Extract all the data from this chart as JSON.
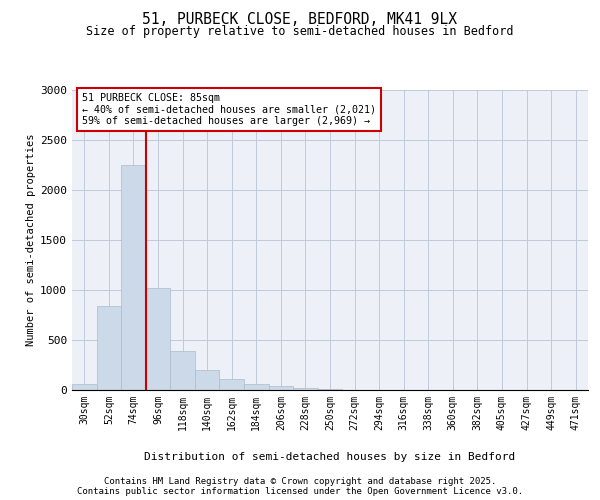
{
  "title1": "51, PURBECK CLOSE, BEDFORD, MK41 9LX",
  "title2": "Size of property relative to semi-detached houses in Bedford",
  "xlabel": "Distribution of semi-detached houses by size in Bedford",
  "ylabel": "Number of semi-detached properties",
  "bar_color": "#ccd9e8",
  "bar_edge_color": "#aabccc",
  "categories": [
    "30sqm",
    "52sqm",
    "74sqm",
    "96sqm",
    "118sqm",
    "140sqm",
    "162sqm",
    "184sqm",
    "206sqm",
    "228sqm",
    "250sqm",
    "272sqm",
    "294sqm",
    "316sqm",
    "338sqm",
    "360sqm",
    "382sqm",
    "405sqm",
    "427sqm",
    "449sqm",
    "471sqm"
  ],
  "values": [
    60,
    840,
    2250,
    1020,
    390,
    200,
    110,
    65,
    40,
    25,
    10,
    4,
    2,
    2,
    1,
    1,
    0,
    0,
    0,
    0,
    0
  ],
  "ylim": [
    0,
    3000
  ],
  "yticks": [
    0,
    500,
    1000,
    1500,
    2000,
    2500,
    3000
  ],
  "property_line_x": 2.5,
  "annotation_title": "51 PURBECK CLOSE: 85sqm",
  "annotation_line1": "← 40% of semi-detached houses are smaller (2,021)",
  "annotation_line2": "59% of semi-detached houses are larger (2,969) →",
  "red_line_color": "#cc0000",
  "grid_color": "#c0cadc",
  "background_color": "#edf1f7",
  "footer1": "Contains HM Land Registry data © Crown copyright and database right 2025.",
  "footer2": "Contains public sector information licensed under the Open Government Licence v3.0."
}
